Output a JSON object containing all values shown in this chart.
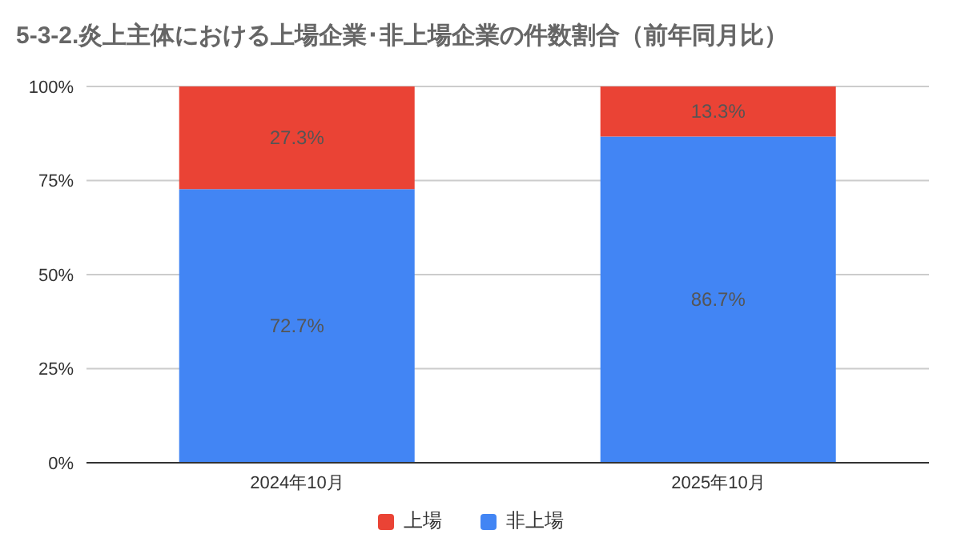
{
  "chart_data": {
    "type": "bar",
    "title": "5-3-2.炎上主体における上場企業･非上場企業の件数割合（前年同月比）",
    "categories": [
      "2024年10月",
      "2025年10月"
    ],
    "stacked": true,
    "series": [
      {
        "name": "非上場",
        "color": "#4285f4",
        "values": [
          72.7,
          86.7
        ],
        "value_labels": [
          "72.7%",
          "86.7%"
        ]
      },
      {
        "name": "上場",
        "color": "#ea4335",
        "values": [
          27.3,
          13.3
        ],
        "value_labels": [
          "27.3%",
          "13.3%"
        ]
      }
    ],
    "ylim": [
      0,
      100
    ],
    "yticks": [
      {
        "value": 0,
        "label": "0%"
      },
      {
        "value": 25,
        "label": "25%"
      },
      {
        "value": 50,
        "label": "50%"
      },
      {
        "value": 75,
        "label": "75%"
      },
      {
        "value": 100,
        "label": "100%"
      }
    ],
    "grid": "y",
    "legend": "bottom"
  }
}
